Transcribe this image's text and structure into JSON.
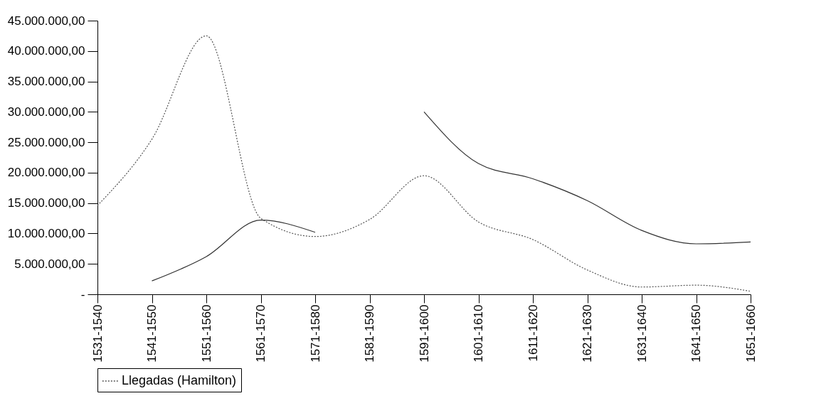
{
  "chart_data": {
    "type": "line",
    "categories": [
      "1531-1540",
      "1541-1550",
      "1551-1560",
      "1561-1570",
      "1571-1580",
      "1581-1590",
      "1591-1600",
      "1601-1610",
      "1611-1620",
      "1621-1630",
      "1631-1640",
      "1641-1650",
      "1651-1660"
    ],
    "series": [
      {
        "name": "Llegadas (Hamilton)",
        "color": "#555555",
        "line_style": "dotted",
        "values": [
          14600000,
          25500000,
          42500000,
          12500000,
          9500000,
          12300000,
          19500000,
          11900000,
          9000000,
          4000000,
          1200000,
          1500000,
          500000
        ]
      },
      {
        "color": "#333333",
        "line_style": "solid",
        "values": [
          null,
          2200000,
          6200000,
          12200000,
          10200000,
          null,
          30000000,
          21500000,
          19000000,
          15400000,
          10500000,
          8300000,
          8600000
        ]
      }
    ],
    "ylim": [
      0,
      45000000
    ],
    "yticks": [
      {
        "value": 0,
        "label": "-"
      },
      {
        "value": 5000000,
        "label": "5.000.000,00"
      },
      {
        "value": 10000000,
        "label": "10.000.000,00"
      },
      {
        "value": 15000000,
        "label": "15.000.000,00"
      },
      {
        "value": 20000000,
        "label": "20.000.000,00"
      },
      {
        "value": 25000000,
        "label": "25.000.000,00"
      },
      {
        "value": 30000000,
        "label": "30.000.000,00"
      },
      {
        "value": 35000000,
        "label": "35.000.000,00"
      },
      {
        "value": 40000000,
        "label": "40.000.000,00"
      },
      {
        "value": 45000000,
        "label": "45.000.000,00"
      }
    ],
    "grid": false,
    "legend": "bottom",
    "marker": "none"
  }
}
